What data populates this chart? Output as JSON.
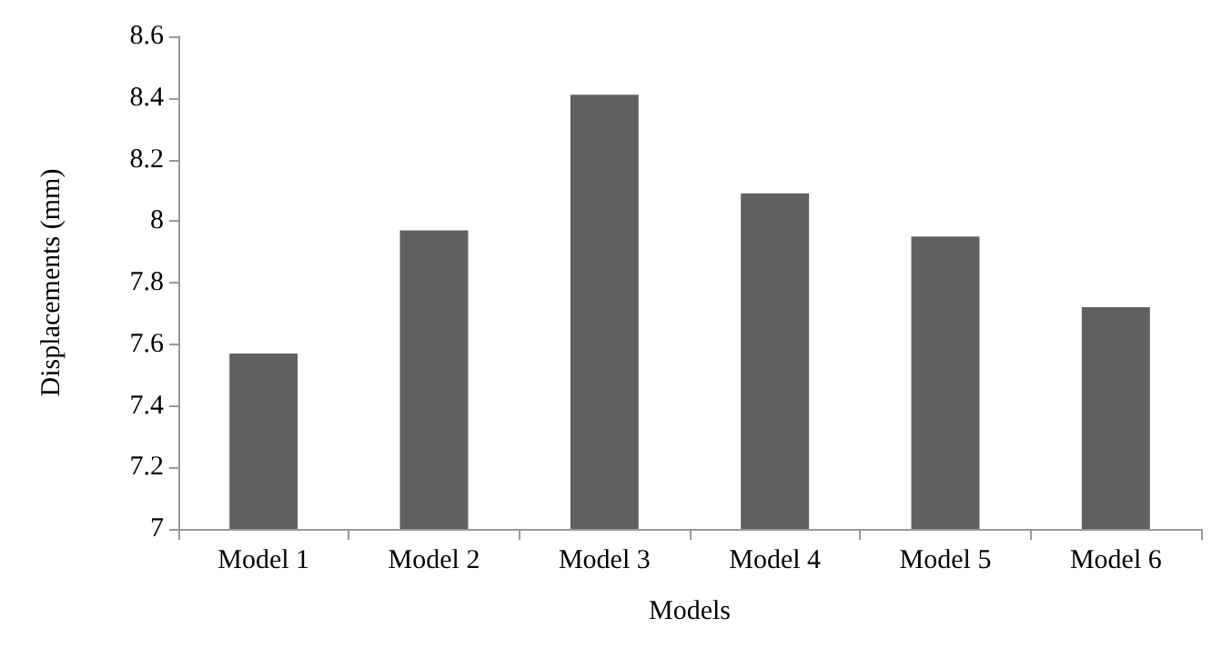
{
  "chart_data": {
    "type": "bar",
    "xlabel": "Models",
    "ylabel": "Displacements (mm)",
    "categories": [
      "Model 1",
      "Model 2",
      "Model 3",
      "Model 4",
      "Model 5",
      "Model 6"
    ],
    "values": [
      7.57,
      7.97,
      8.41,
      8.09,
      7.95,
      7.72
    ],
    "color": "#606060",
    "ylim": [
      7,
      8.6
    ],
    "yticks": [
      7,
      7.2,
      7.4,
      7.6,
      7.8,
      8,
      8.2,
      8.4,
      8.6
    ],
    "grid": false
  }
}
